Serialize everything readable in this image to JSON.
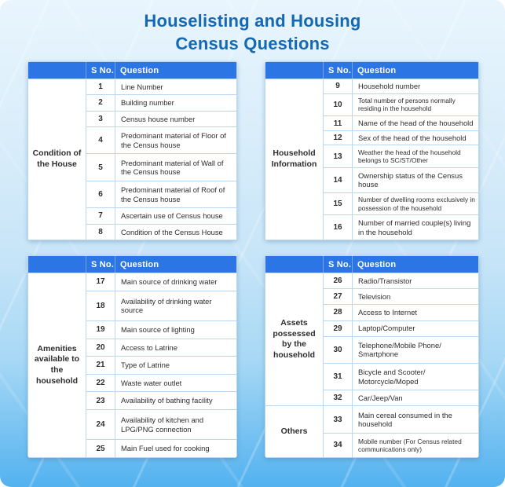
{
  "title": "Houselisting and Housing Census Questions",
  "colors": {
    "title_blue": "#1568b4",
    "header_blue": "#2b76e4",
    "border_blue": "#b9d7f1",
    "text_dark": "#2d2d2d",
    "bg_top": "#e9f5fd",
    "bg_bottom": "#53b2ef"
  },
  "table_header": {
    "sno": "S No.",
    "question": "Question"
  },
  "tables": [
    {
      "groups": [
        {
          "label": "Condition of the House",
          "rows": [
            {
              "no": "1",
              "q": "Line Number"
            },
            {
              "no": "2",
              "q": "Building number"
            },
            {
              "no": "3",
              "q": "Census house number"
            },
            {
              "no": "4",
              "q": "Predominant material of Floor of the Census house"
            },
            {
              "no": "5",
              "q": "Predominant material of Wall of the Census house"
            },
            {
              "no": "6",
              "q": "Predominant material of Roof of the Census house"
            },
            {
              "no": "7",
              "q": "Ascertain use of Census house"
            },
            {
              "no": "8",
              "q": "Condition of the Census House"
            }
          ]
        }
      ]
    },
    {
      "groups": [
        {
          "label": "Household Information",
          "rows": [
            {
              "no": "9",
              "q": "Household number"
            },
            {
              "no": "10",
              "q": "Total number of persons normally residing in the household",
              "small": true
            },
            {
              "no": "11",
              "q": "Name of the head of the household"
            },
            {
              "no": "12",
              "q": "Sex of the head of the household"
            },
            {
              "no": "13",
              "q": "Weather the head of the household belongs to SC/ST/Other",
              "small": true
            },
            {
              "no": "14",
              "q": "Ownership status of the Census house"
            },
            {
              "no": "15",
              "q": "Number of dwelling rooms exclusively in possession of the household",
              "small": true
            },
            {
              "no": "16",
              "q": "Number of married couple(s) living in the household"
            }
          ]
        }
      ]
    },
    {
      "groups": [
        {
          "label": "Amenities available to the household",
          "rows": [
            {
              "no": "17",
              "q": "Main source of drinking water"
            },
            {
              "no": "18",
              "q": "Availability of drinking water source"
            },
            {
              "no": "19",
              "q": "Main source of lighting"
            },
            {
              "no": "20",
              "q": "Access to Latrine"
            },
            {
              "no": "21",
              "q": "Type of Latrine"
            },
            {
              "no": "22",
              "q": "Waste water outlet"
            },
            {
              "no": "23",
              "q": "Availability of bathing facility"
            },
            {
              "no": "24",
              "q": "Availability of kitchen and LPG/PNG connection"
            },
            {
              "no": "25",
              "q": "Main Fuel used for cooking"
            }
          ]
        }
      ]
    },
    {
      "groups": [
        {
          "label": "Assets possessed by the household",
          "rows": [
            {
              "no": "26",
              "q": "Radio/Transistor"
            },
            {
              "no": "27",
              "q": "Television"
            },
            {
              "no": "28",
              "q": "Access to Internet"
            },
            {
              "no": "29",
              "q": "Laptop/Computer"
            },
            {
              "no": "30",
              "q": "Telephone/Mobile Phone/ Smartphone"
            },
            {
              "no": "31",
              "q": "Bicycle and Scooter/ Motorcycle/Moped"
            },
            {
              "no": "32",
              "q": "Car/Jeep/Van"
            }
          ]
        },
        {
          "label": "Others",
          "rows": [
            {
              "no": "33",
              "q": "Main cereal consumed in the household"
            },
            {
              "no": "34",
              "q": "Mobile number (For Census related communications only)",
              "small": true
            }
          ]
        }
      ]
    }
  ]
}
